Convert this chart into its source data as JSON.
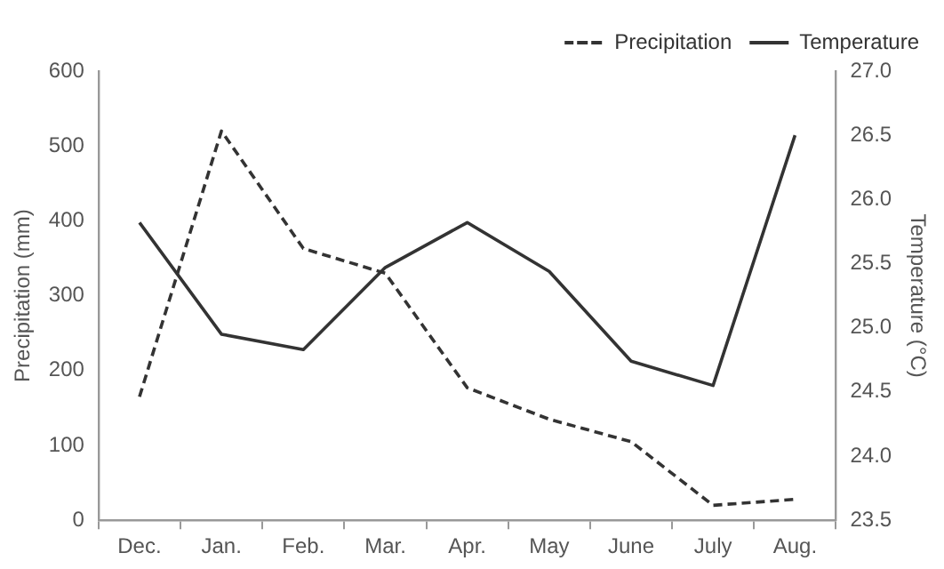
{
  "chart_data": {
    "type": "line",
    "ylabel": "Precipitation (mm)",
    "y2label": "Temperature (°C)",
    "categories": [
      "Dec.",
      "Jan.",
      "Feb.",
      "Mar.",
      "Apr.",
      "May",
      "June",
      "July",
      "Aug."
    ],
    "series": [
      {
        "name": "Precipitation",
        "color": "#333333",
        "line_style": "dashed",
        "values": [
          165,
          520,
          363,
          330,
          177,
          135,
          105,
          20,
          28
        ]
      },
      {
        "name": "Temperature",
        "color": "#333333",
        "line_style": "solid",
        "axis": "y2",
        "values": [
          25.82,
          24.95,
          24.83,
          25.47,
          25.82,
          25.44,
          24.74,
          24.55,
          26.5
        ]
      }
    ],
    "ylim": [
      0,
      600
    ],
    "yticks": [
      0,
      100,
      200,
      300,
      400,
      500,
      600
    ],
    "y2lim": [
      23.5,
      27
    ],
    "y2ticks": [
      {
        "value": 23.5,
        "label": "23.5"
      },
      {
        "value": 24,
        "label": "24.0"
      },
      {
        "value": 24.5,
        "label": "24.5"
      },
      {
        "value": 25,
        "label": "25.0"
      },
      {
        "value": 25.5,
        "label": "25.5"
      },
      {
        "value": 26,
        "label": "26.0"
      },
      {
        "value": 26.5,
        "label": "26.5"
      },
      {
        "value": 27,
        "label": "27.0"
      }
    ],
    "grid": false,
    "legend": "top right",
    "marker": "none"
  }
}
